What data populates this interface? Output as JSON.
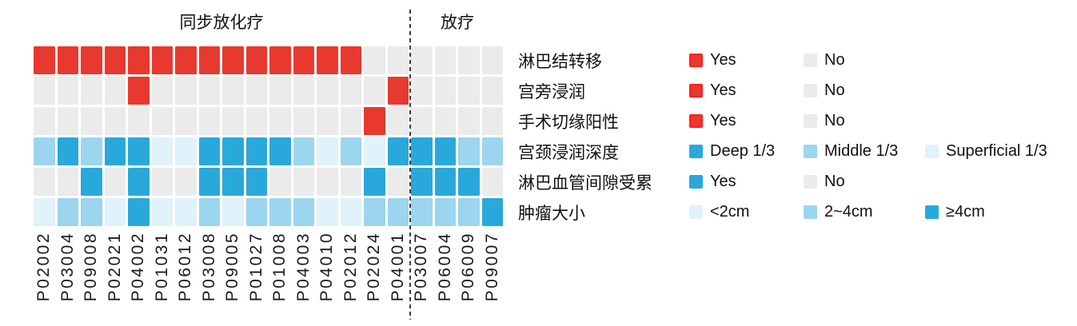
{
  "chart_data": {
    "type": "heatmap",
    "groups": [
      {
        "label": "同步放化疗",
        "patients": [
          "P02002",
          "P03004",
          "P09008",
          "P02021",
          "P04002",
          "P01031",
          "P06012",
          "P03008",
          "P09005",
          "P01027",
          "P01008",
          "P04003",
          "P04010",
          "P02012",
          "P02024",
          "P04001"
        ]
      },
      {
        "label": "放疗",
        "patients": [
          "P03007",
          "P06004",
          "P06009",
          "P09007"
        ]
      }
    ],
    "rows": [
      {
        "label": "淋巴结转移",
        "legend": [
          {
            "label": "Yes",
            "color": "red",
            "bordered": true
          },
          {
            "label": "No",
            "color": "gray"
          }
        ],
        "values": [
          "Yes",
          "Yes",
          "Yes",
          "Yes",
          "Yes",
          "Yes",
          "Yes",
          "Yes",
          "Yes",
          "Yes",
          "Yes",
          "Yes",
          "Yes",
          "Yes",
          "No",
          "No",
          "No",
          "No",
          "No",
          "No"
        ]
      },
      {
        "label": "宫旁浸润",
        "legend": [
          {
            "label": "Yes",
            "color": "red",
            "bordered": true
          },
          {
            "label": "No",
            "color": "gray"
          }
        ],
        "values": [
          "No",
          "No",
          "No",
          "No",
          "Yes",
          "No",
          "No",
          "No",
          "No",
          "No",
          "No",
          "No",
          "No",
          "No",
          "No",
          "Yes",
          "No",
          "No",
          "No",
          "No"
        ]
      },
      {
        "label": "手术切缘阳性",
        "legend": [
          {
            "label": "Yes",
            "color": "red",
            "bordered": true
          },
          {
            "label": "No",
            "color": "gray"
          }
        ],
        "values": [
          "No",
          "No",
          "No",
          "No",
          "No",
          "No",
          "No",
          "No",
          "No",
          "No",
          "No",
          "No",
          "No",
          "No",
          "Yes",
          "No",
          "No",
          "No",
          "No",
          "No"
        ]
      },
      {
        "label": "宫颈浸润深度",
        "legend": [
          {
            "label": "Deep 1/3",
            "color": "blue_deep"
          },
          {
            "label": "Middle 1/3",
            "color": "blue_mid"
          },
          {
            "label": "Superficial 1/3",
            "color": "blue_light"
          }
        ],
        "values": [
          "Middle 1/3",
          "Deep 1/3",
          "Middle 1/3",
          "Deep 1/3",
          "Deep 1/3",
          "Superficial 1/3",
          "Superficial 1/3",
          "Deep 1/3",
          "Deep 1/3",
          "Deep 1/3",
          "Deep 1/3",
          "Middle 1/3",
          "Superficial 1/3",
          "Middle 1/3",
          "Superficial 1/3",
          "Deep 1/3",
          "Deep 1/3",
          "Deep 1/3",
          "Middle 1/3",
          "Middle 1/3"
        ]
      },
      {
        "label": "淋巴血管间隙受累",
        "legend": [
          {
            "label": "Yes",
            "color": "blue_deep"
          },
          {
            "label": "No",
            "color": "gray"
          }
        ],
        "values": [
          "No",
          "No",
          "Yes",
          "No",
          "Yes",
          "No",
          "No",
          "Yes",
          "Yes",
          "Yes",
          "No",
          "No",
          "No",
          "No",
          "Yes",
          "No",
          "Yes",
          "Yes",
          "Yes",
          "No"
        ]
      },
      {
        "label": "肿瘤大小",
        "legend": [
          {
            "label": "<2cm",
            "color": "blue_light"
          },
          {
            "label": "2~4cm",
            "color": "blue_mid"
          },
          {
            "label": "≥4cm",
            "color": "blue_deep"
          }
        ],
        "values": [
          "<2cm",
          "2~4cm",
          "2~4cm",
          "<2cm",
          "≥4cm",
          "<2cm",
          "<2cm",
          "2~4cm",
          "<2cm",
          "2~4cm",
          "2~4cm",
          "2~4cm",
          "<2cm",
          "<2cm",
          "2~4cm",
          "2~4cm",
          "2~4cm",
          "2~4cm",
          "2~4cm",
          "≥4cm"
        ]
      }
    ],
    "colors": {
      "red": "#E8392F",
      "red_border": "#FF1E1E",
      "gray": "#EBEBEB",
      "blue_deep": "#29A8DC",
      "blue_mid": "#9CD5EE",
      "blue_light": "#E0F2FA"
    }
  }
}
